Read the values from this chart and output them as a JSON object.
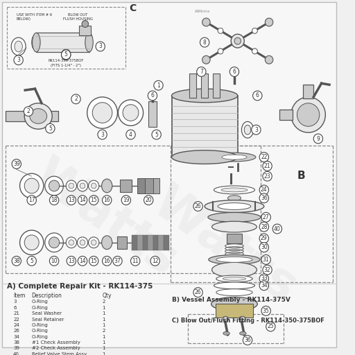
{
  "bg_color": "#f0f0f0",
  "white": "#ffffff",
  "text_color": "#333333",
  "line_color": "#555555",
  "dark_line": "#444444",
  "circle_fg": "#ffffff",
  "circle_edge": "#444444",
  "dashed_color": "#888888",
  "fill_light": "#e8e8e8",
  "fill_mid": "#cccccc",
  "fill_dark": "#aaaaaa",
  "fill_body": "#d4d4d4",
  "section_a_title": "A) Complete Repair Kit - RK114-375",
  "section_b_title": "B) Vessel Assembly - RK114-375V",
  "section_c_title": "C) Blow Out/Flush Fitting - RK114-350-375BOF",
  "table_header": [
    "Item",
    "Description",
    "Qty"
  ],
  "table_rows": [
    [
      "3",
      "O-Ring",
      "2"
    ],
    [
      "6",
      "O-Ring",
      "1"
    ],
    [
      "21",
      "Seal Washer",
      "1"
    ],
    [
      "22",
      "Seal Retainer",
      "1"
    ],
    [
      "24",
      "O-Ring",
      "1"
    ],
    [
      "26",
      "O-Ring",
      "2"
    ],
    [
      "34",
      "O-Ring",
      "1"
    ],
    [
      "38",
      "#1 Check Assembly",
      "1"
    ],
    [
      "39",
      "#2 Check Assembly",
      "1"
    ],
    [
      "40",
      "Relief Valve Stem Assy",
      "1"
    ]
  ]
}
